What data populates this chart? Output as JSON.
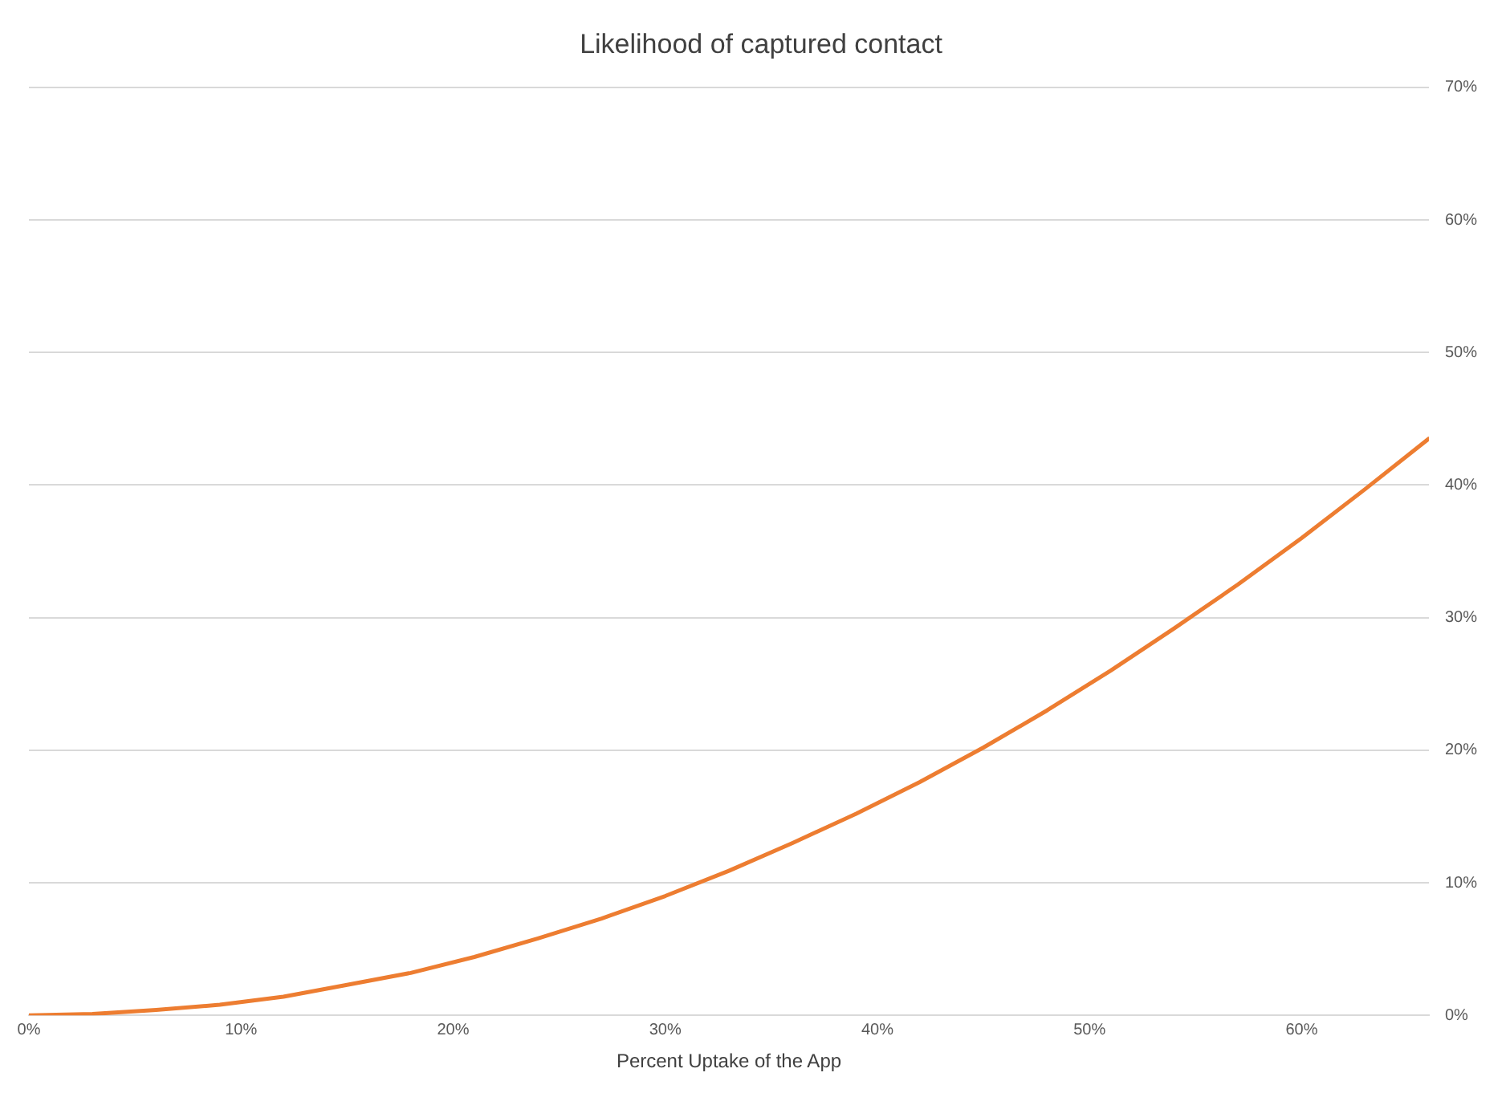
{
  "chart_data": {
    "type": "line",
    "title": "Likelihood of captured contact",
    "xlabel": "Percent Uptake of the App",
    "x": [
      0,
      3,
      6,
      9,
      12,
      15,
      18,
      21,
      24,
      27,
      30,
      33,
      36,
      39,
      42,
      45,
      48,
      51,
      54,
      57,
      60,
      63,
      66
    ],
    "series": [
      {
        "color": "#ed7d31",
        "values": [
          0,
          0.1,
          0.4,
          0.8,
          1.4,
          2.3,
          3.2,
          4.4,
          5.8,
          7.3,
          9,
          10.9,
          13,
          15.2,
          17.6,
          20.2,
          23,
          26,
          29.2,
          32.5,
          36,
          39.7,
          43.5
        ]
      }
    ],
    "xlim": [
      0,
      66
    ],
    "xticks": [
      {
        "value": 0,
        "label": "0%"
      },
      {
        "value": 10,
        "label": "10%"
      },
      {
        "value": 20,
        "label": "20%"
      },
      {
        "value": 30,
        "label": "30%"
      },
      {
        "value": 40,
        "label": "40%"
      },
      {
        "value": 50,
        "label": "50%"
      },
      {
        "value": 60,
        "label": "60%"
      }
    ],
    "ylim": [
      0,
      70
    ],
    "yticks": [
      {
        "value": 0,
        "label": "0%"
      },
      {
        "value": 10,
        "label": "10%"
      },
      {
        "value": 20,
        "label": "20%"
      },
      {
        "value": 30,
        "label": "30%"
      },
      {
        "value": 40,
        "label": "40%"
      },
      {
        "value": 50,
        "label": "50%"
      },
      {
        "value": 60,
        "label": "60%"
      },
      {
        "value": 70,
        "label": "70%"
      }
    ],
    "grid": "y",
    "legend": false,
    "marker": "none",
    "line_style": "solid"
  }
}
